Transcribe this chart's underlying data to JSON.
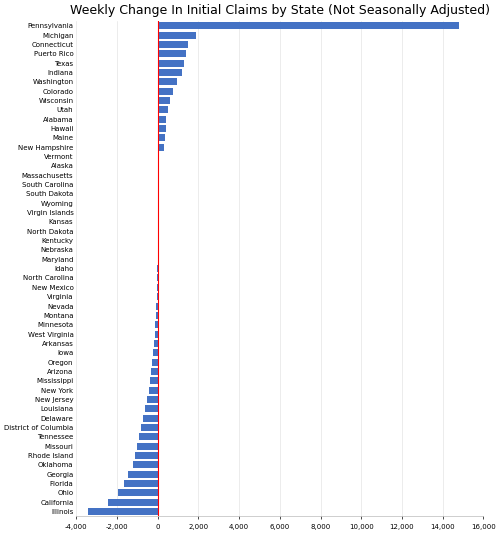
{
  "title": "Weekly Change In Initial Claims by State (Not Seasonally Adjusted)",
  "states": [
    "Pennsylvania",
    "Michigan",
    "Connecticut",
    "Puerto Rico",
    "Texas",
    "Indiana",
    "Washington",
    "Colorado",
    "Wisconsin",
    "Utah",
    "Alabama",
    "Hawaii",
    "Maine",
    "New Hampshire",
    "Vermont",
    "Alaska",
    "Massachusetts",
    "South Carolina",
    "South Dakota",
    "Wyoming",
    "Virgin Islands",
    "Kansas",
    "North Dakota",
    "Kentucky",
    "Nebraska",
    "Maryland",
    "Idaho",
    "North Carolina",
    "New Mexico",
    "Virginia",
    "Nevada",
    "Montana",
    "Minnesota",
    "West Virginia",
    "Arkansas",
    "Iowa",
    "Oregon",
    "Arizona",
    "Mississippi",
    "New York",
    "New Jersey",
    "Louisiana",
    "Delaware",
    "District of Columbia",
    "Tennessee",
    "Missouri",
    "Rhode Island",
    "Oklahoma",
    "Georgia",
    "Florida",
    "Ohio",
    "California",
    "Illinois"
  ],
  "values": [
    14800,
    1900,
    1500,
    1400,
    1300,
    1200,
    950,
    750,
    600,
    520,
    430,
    400,
    370,
    320,
    60,
    40,
    20,
    15,
    10,
    8,
    5,
    3,
    2,
    1,
    0,
    -5,
    -10,
    -15,
    -25,
    -40,
    -60,
    -80,
    -110,
    -150,
    -200,
    -230,
    -280,
    -330,
    -380,
    -430,
    -530,
    -620,
    -730,
    -820,
    -930,
    -1020,
    -1120,
    -1220,
    -1450,
    -1650,
    -1950,
    -2450,
    -3400
  ],
  "bar_color": "#4472C4",
  "zero_line_color": "#FF0000",
  "xlim": [
    -4000,
    16000
  ],
  "xticks": [
    -4000,
    -2000,
    0,
    2000,
    4000,
    6000,
    8000,
    10000,
    12000,
    14000,
    16000
  ],
  "background_color": "#FFFFFF",
  "title_fontsize": 9,
  "tick_fontsize": 5.0,
  "bar_height": 0.75,
  "figsize": [
    5.0,
    5.34
  ],
  "dpi": 100
}
